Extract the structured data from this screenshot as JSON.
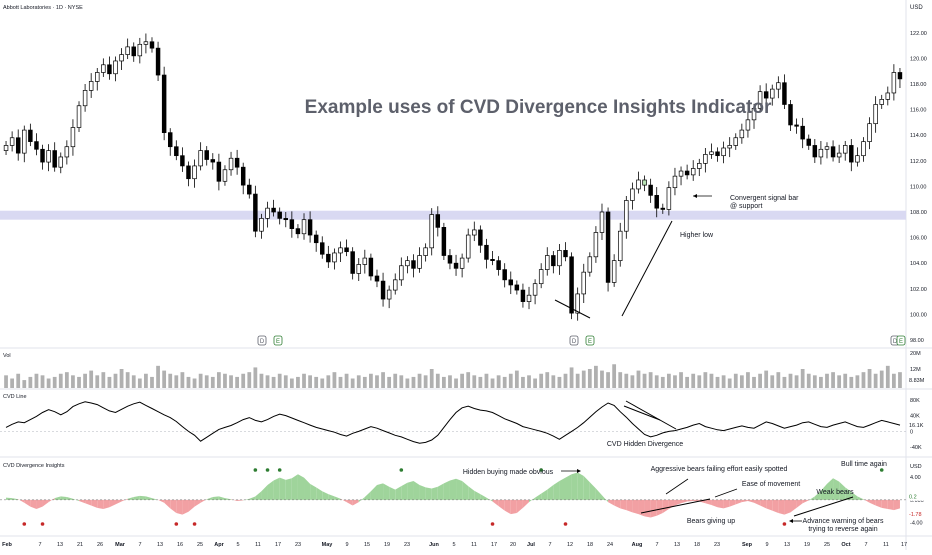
{
  "header": {
    "symbol_title": "Abbott Laboratories · 1D · NYSE",
    "currency": "USD"
  },
  "headline": "Example uses of CVD Divergence Insights Indicator",
  "panels": {
    "vol_label": "Vol",
    "cvd_label": "CVD Line",
    "div_label": "CVD Divergence Insights",
    "div_unit": "USD"
  },
  "price_axis": {
    "ticks": [
      "122.00",
      "120.00",
      "118.00",
      "116.00",
      "114.00",
      "112.00",
      "110.00",
      "108.00",
      "106.00",
      "104.00",
      "102.00",
      "100.00",
      "98.00"
    ]
  },
  "vol_axis": {
    "ticks": [
      "20M",
      "12M",
      "4M"
    ],
    "last_value": "8.83M"
  },
  "cvd_axis": {
    "ticks": [
      "80K",
      "40K",
      "0",
      "-40K"
    ],
    "last_value": "16.1K"
  },
  "div_axis": {
    "ticks": [
      "4.00",
      "0.000",
      "-4.00"
    ],
    "last_value_pos": "0.2",
    "last_value_neg": "-1.78"
  },
  "x_axis": {
    "labels": [
      "Feb",
      "7",
      "13",
      "21",
      "26",
      "Mar",
      "7",
      "13",
      "16",
      "25",
      "Apr",
      "5",
      "11",
      "17",
      "23",
      "May",
      "9",
      "15",
      "19",
      "23",
      "Jun",
      "5",
      "11",
      "17",
      "20",
      "Jul",
      "7",
      "12",
      "18",
      "24",
      "Aug",
      "7",
      "13",
      "18",
      "23",
      "Sep",
      "9",
      "13",
      "19",
      "25",
      "Oct",
      "7",
      "11",
      "17"
    ]
  },
  "event_badges": [
    "D",
    "E",
    "D",
    "E",
    "D",
    "E"
  ],
  "annotations": {
    "convergent_signal": "Convergent signal bar\n@ support",
    "higher_low": "Higher low",
    "cvd_hidden_div": "CVD Hidden Divergence",
    "hidden_buying": "Hidden buying made obvious",
    "aggressive_bears": "Aggressive bears failing effort easily spotted",
    "ease_of_movement": "Ease of movement",
    "bull_time": "Bull time again",
    "weak_bears": "Weak bears",
    "bears_giving_up": "Bears giving up",
    "advance_warning": "Advance warning of bears\ntrying to reverse again"
  },
  "colors": {
    "up_candle": "#ffffff",
    "down_candle": "#000000",
    "support_band": "#d9d9f2",
    "cvd_line": "#000000",
    "div_positive": "#9fd49b",
    "div_negative": "#f2a0a3",
    "volume": "#b0b0b0",
    "signal_bar": "#b9e3b5"
  },
  "chart_data": [
    {
      "type": "candlestick",
      "title": "Abbott Laboratories · 1D · NYSE",
      "ylabel": "USD",
      "ylim": [
        98,
        123
      ],
      "support_zone": [
        107.4,
        108.1
      ],
      "close": [
        113.2,
        113.8,
        112.6,
        114.4,
        113.5,
        112.9,
        111.9,
        112.8,
        111.5,
        112.3,
        113.1,
        114.6,
        116.3,
        117.5,
        118.2,
        118.9,
        119.5,
        118.8,
        119.8,
        120.3,
        120.9,
        120.2,
        121.1,
        121.3,
        120.8,
        118.7,
        114.2,
        113.1,
        112.4,
        111.6,
        110.6,
        111.6,
        112.8,
        112.1,
        111.9,
        110.4,
        111.3,
        112.2,
        111.5,
        110.1,
        109.4,
        106.5,
        107.5,
        108.3,
        108.0,
        107.5,
        107.4,
        106.7,
        106.3,
        107.4,
        106.2,
        105.6,
        104.7,
        104.1,
        104.8,
        105.2,
        104.9,
        103.2,
        103.9,
        104.4,
        103.0,
        102.6,
        101.2,
        101.9,
        102.7,
        103.8,
        104.2,
        103.6,
        104.6,
        105.2,
        107.8,
        106.8,
        104.6,
        104.0,
        103.6,
        104.4,
        106.2,
        106.6,
        105.4,
        104.3,
        104.2,
        103.5,
        102.7,
        102.3,
        101.9,
        101.0,
        101.5,
        102.4,
        103.5,
        104.6,
        103.8,
        105.0,
        104.5,
        100.1,
        101.6,
        103.3,
        104.5,
        106.4,
        108.0,
        102.5,
        104.2,
        106.5,
        108.9,
        109.8,
        110.5,
        110.1,
        109.3,
        108.3,
        108.2,
        109.9,
        110.8,
        111.2,
        110.9,
        111.4,
        111.8,
        112.5,
        112.7,
        112.4,
        113.0,
        113.2,
        113.8,
        114.4,
        115.2,
        116.1,
        117.4,
        116.9,
        117.6,
        118.1,
        116.4,
        114.8,
        114.7,
        113.7,
        113.2,
        112.3,
        112.9,
        113.1,
        112.3,
        112.6,
        113.2,
        111.9,
        112.4,
        113.5,
        114.9,
        116.4,
        116.8,
        117.3,
        118.9,
        118.4
      ]
    },
    {
      "type": "bar",
      "title": "Vol",
      "ylim": [
        0,
        24
      ],
      "values": [
        8,
        6,
        9,
        5,
        7,
        9,
        8,
        6,
        7,
        9,
        10,
        8,
        7,
        9,
        11,
        8,
        10,
        7,
        9,
        12,
        10,
        8,
        6,
        9,
        7,
        14,
        11,
        9,
        8,
        10,
        7,
        6,
        9,
        8,
        7,
        10,
        9,
        8,
        7,
        9,
        10,
        13,
        9,
        8,
        7,
        9,
        8,
        6,
        7,
        9,
        8,
        7,
        6,
        8,
        10,
        7,
        9,
        6,
        8,
        7,
        9,
        8,
        10,
        7,
        9,
        8,
        6,
        7,
        9,
        8,
        12,
        9,
        7,
        8,
        6,
        9,
        10,
        8,
        7,
        9,
        6,
        8,
        7,
        9,
        11,
        7,
        8,
        6,
        9,
        10,
        8,
        7,
        9,
        13,
        9,
        11,
        12,
        14,
        11,
        10,
        15,
        10,
        9,
        8,
        11,
        9,
        10,
        8,
        7,
        9,
        8,
        10,
        7,
        9,
        8,
        10,
        9,
        7,
        8,
        6,
        9,
        8,
        10,
        7,
        9,
        11,
        8,
        10,
        7,
        9,
        8,
        12,
        9,
        8,
        7,
        9,
        10,
        8,
        9,
        7,
        8,
        10,
        12,
        9,
        11,
        14,
        9,
        10,
        8,
        9,
        9
      ]
    },
    {
      "type": "line",
      "title": "CVD Line",
      "ylim": [
        -60,
        100
      ],
      "values": [
        10,
        18,
        24,
        22,
        30,
        38,
        48,
        55,
        50,
        42,
        50,
        63,
        70,
        75,
        72,
        68,
        60,
        52,
        48,
        56,
        64,
        70,
        74,
        66,
        58,
        50,
        42,
        35,
        25,
        12,
        0,
        -10,
        -25,
        -15,
        -5,
        5,
        10,
        15,
        22,
        30,
        35,
        28,
        24,
        30,
        38,
        44,
        40,
        34,
        28,
        22,
        16,
        10,
        6,
        2,
        -2,
        -8,
        -12,
        -5,
        0,
        6,
        12,
        8,
        2,
        -4,
        -10,
        -14,
        -20,
        -26,
        -30,
        -28,
        -22,
        -10,
        10,
        30,
        48,
        60,
        64,
        58,
        54,
        52,
        48,
        40,
        32,
        26,
        20,
        12,
        8,
        4,
        0,
        -5,
        -12,
        -20,
        -10,
        0,
        10,
        22,
        36,
        50,
        62,
        72,
        66,
        50,
        36,
        20,
        6,
        -8,
        -14,
        -10,
        -4,
        0,
        2,
        6,
        10,
        16,
        20,
        12,
        8,
        4,
        2,
        6,
        10,
        14,
        10,
        8,
        16,
        24,
        20,
        14,
        8,
        12,
        16,
        22,
        24,
        18,
        12,
        10,
        16,
        20,
        24,
        18,
        12,
        10,
        16,
        22,
        28,
        24,
        20,
        16,
        14,
        16
      ]
    },
    {
      "type": "area",
      "title": "CVD Divergence Insights",
      "ylim": [
        -6,
        7
      ],
      "values": [
        0.4,
        0.3,
        0.1,
        -0.5,
        -1.2,
        -1.6,
        -1.2,
        -0.4,
        0.3,
        0.6,
        0.5,
        0.2,
        -0.2,
        -0.6,
        -1.0,
        -1.4,
        -1.6,
        -1.3,
        -0.8,
        -0.3,
        0.2,
        0.5,
        0.7,
        0.6,
        0.3,
        0.0,
        -0.5,
        -1.5,
        -2.3,
        -2.6,
        -2.1,
        -1.2,
        -0.5,
        0.1,
        0.5,
        0.6,
        0.3,
        0.1,
        -0.2,
        -0.1,
        0.2,
        0.6,
        1.5,
        2.6,
        3.4,
        3.9,
        3.5,
        3.8,
        4.5,
        3.9,
        2.8,
        2.2,
        1.5,
        1.0,
        0.6,
        0.2,
        -0.4,
        -1.0,
        -0.4,
        0.5,
        1.5,
        2.6,
        2.9,
        2.3,
        1.8,
        2.4,
        3.0,
        3.3,
        2.6,
        2.2,
        2.0,
        2.3,
        2.9,
        3.4,
        3.7,
        3.3,
        2.4,
        1.6,
        1.0,
        0.4,
        -0.3,
        -1.1,
        -1.9,
        -2.5,
        -2.3,
        -1.4,
        -0.4,
        0.4,
        1.1,
        1.8,
        2.6,
        3.3,
        3.9,
        4.5,
        4.8,
        4.2,
        3.1,
        2.0,
        0.8,
        -0.4,
        -1.0,
        -1.5,
        -1.8,
        -2.2,
        -2.5,
        -2.9,
        -3.1,
        -2.8,
        -2.3,
        -1.6,
        -1.0,
        -0.6,
        -0.3,
        -0.2,
        -0.3,
        -0.6,
        -0.9,
        -1.3,
        -1.5,
        -1.2,
        -0.8,
        -0.4,
        -0.2,
        -0.5,
        -1.0,
        -1.5,
        -1.9,
        -2.3,
        -2.6,
        -2.2,
        -1.4,
        -0.6,
        -0.1,
        0.6,
        1.6,
        2.8,
        3.8,
        3.2,
        2.2,
        1.4,
        0.6,
        0.1,
        -0.5,
        -1.0,
        -1.4,
        -1.6,
        -1.8,
        -1.5,
        -1.2,
        -1.0,
        -0.8,
        -0.7
      ]
    }
  ]
}
